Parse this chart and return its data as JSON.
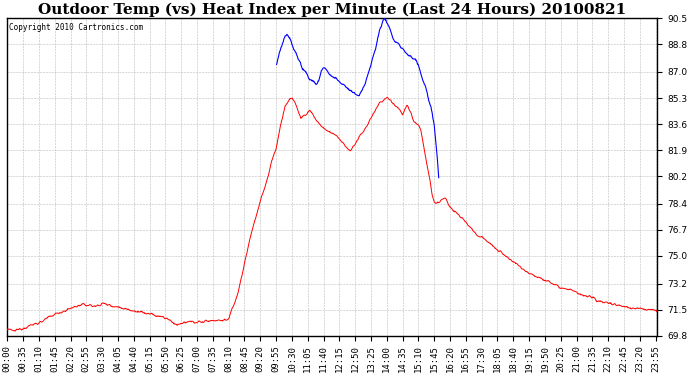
{
  "title": "Outdoor Temp (vs) Heat Index per Minute (Last 24 Hours) 20100821",
  "copyright": "Copyright 2010 Cartronics.com",
  "background_color": "#ffffff",
  "plot_background": "#ffffff",
  "grid_color": "#bbbbbb",
  "ylim": [
    69.8,
    90.5
  ],
  "yticks": [
    69.8,
    71.5,
    73.2,
    75.0,
    76.7,
    78.4,
    80.2,
    81.9,
    83.6,
    85.3,
    87.0,
    88.8,
    90.5
  ],
  "red_color": "#ff0000",
  "blue_color": "#0000ff",
  "title_fontsize": 11,
  "tick_fontsize": 6.5
}
